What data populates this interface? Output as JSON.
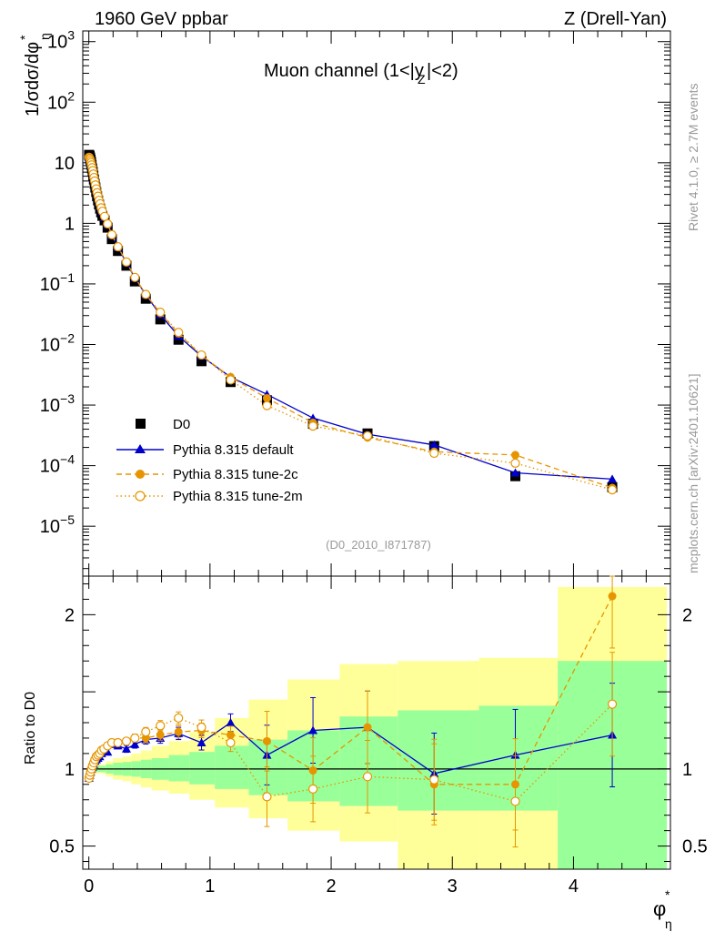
{
  "chart_data": [
    {
      "type": "scatter",
      "panel": "main",
      "header_left": "1960 GeV ppbar",
      "header_right": "Z (Drell-Yan)",
      "title": "Muon channel (1<|y_Z|<2)",
      "ylabel": "1/σdσ/dφ*_η",
      "xlabel": "φ*_η",
      "yscale": "log",
      "ylim": [
        1.5e-06,
        1500
      ],
      "xlim": [
        -0.05,
        4.8
      ],
      "x_ticks": [
        "0",
        "1",
        "2",
        "3",
        "4"
      ],
      "y_ticks": [
        "10^-5",
        "10^-4",
        "10^-3",
        "10^-2",
        "10^-1",
        "1",
        "10",
        "10^2",
        "10^3"
      ],
      "legend_position": "lower-left",
      "watermark": "(D0_2010_I871787)",
      "side_label_top": "Rivet 4.1.0, ≥ 2.7M events",
      "side_label_bottom": "mcplots.cern.ch [arXiv:2401.10621]",
      "x": [
        0.002,
        0.006,
        0.01,
        0.014,
        0.018,
        0.022,
        0.027,
        0.032,
        0.037,
        0.042,
        0.048,
        0.054,
        0.061,
        0.068,
        0.076,
        0.084,
        0.093,
        0.102,
        0.112,
        0.13,
        0.155,
        0.19,
        0.24,
        0.31,
        0.38,
        0.47,
        0.59,
        0.74,
        0.93,
        1.17,
        1.47,
        1.85,
        2.3,
        2.85,
        3.52,
        4.32
      ],
      "series": [
        {
          "name": "D0",
          "color": "#000000",
          "marker": "square",
          "values": [
            13.5,
            13.0,
            12.2,
            11.3,
            10.3,
            9.2,
            8.1,
            7.1,
            6.1,
            5.3,
            4.5,
            3.9,
            3.3,
            2.8,
            2.4,
            2.05,
            1.75,
            1.52,
            1.33,
            1.12,
            0.85,
            0.55,
            0.35,
            0.2,
            0.11,
            0.057,
            0.026,
            0.012,
            0.0053,
            0.0024,
            0.0012,
            0.00049,
            0.00034,
            0.00021,
            6.7e-05,
            4.4e-05
          ]
        },
        {
          "name": "Pythia 8.315 default",
          "color": "#0000cc",
          "marker": "triangle",
          "line": "solid",
          "values": [
            12.3,
            11.9,
            11.4,
            10.7,
            9.9,
            9.0,
            8.1,
            7.2,
            6.3,
            5.5,
            4.8,
            4.2,
            3.6,
            3.1,
            2.7,
            2.35,
            2.0,
            1.75,
            1.52,
            1.25,
            0.95,
            0.63,
            0.4,
            0.225,
            0.125,
            0.066,
            0.031,
            0.0138,
            0.0064,
            0.0029,
            0.0015,
            0.00061,
            0.00033,
            0.00022,
            7.6e-05,
            6e-05
          ]
        },
        {
          "name": "Pythia 8.315 tune-2c",
          "color": "#e69500",
          "marker": "circle",
          "line": "dashed",
          "values": [
            12.3,
            11.9,
            11.4,
            10.7,
            10.0,
            9.2,
            8.3,
            7.4,
            6.5,
            5.7,
            5.0,
            4.3,
            3.7,
            3.2,
            2.8,
            2.4,
            2.1,
            1.8,
            1.58,
            1.3,
            0.98,
            0.65,
            0.41,
            0.23,
            0.128,
            0.067,
            0.033,
            0.0152,
            0.0066,
            0.0029,
            0.0013,
            0.00051,
            0.00029,
            0.00017,
            0.00015,
            4.3e-05
          ]
        },
        {
          "name": "Pythia 8.315 tune-2m",
          "color": "#e69500",
          "marker": "open-circle",
          "line": "dotted",
          "values": [
            12.3,
            11.9,
            11.4,
            10.7,
            10.0,
            9.2,
            8.3,
            7.4,
            6.5,
            5.7,
            5.0,
            4.3,
            3.7,
            3.2,
            2.8,
            2.4,
            2.1,
            1.8,
            1.58,
            1.3,
            0.98,
            0.65,
            0.41,
            0.23,
            0.128,
            0.067,
            0.034,
            0.0158,
            0.0067,
            0.0026,
            0.00098,
            0.00045,
            0.00031,
            0.00016,
            0.00011,
            4e-05
          ]
        }
      ]
    },
    {
      "type": "scatter",
      "panel": "ratio",
      "ylabel": "Ratio to D0",
      "yscale": "linear",
      "ylim": [
        0.35,
        2.25
      ],
      "y_ticks": [
        "0.5",
        "1",
        "2"
      ],
      "bands": {
        "edges": [
          0.0,
          0.06,
          0.14,
          0.2,
          0.28,
          0.35,
          0.43,
          0.52,
          0.66,
          0.83,
          1.04,
          1.32,
          1.64,
          2.07,
          2.55,
          3.22,
          3.87,
          4.77
        ],
        "stat_lo": [
          0.985,
          0.98,
          0.97,
          0.96,
          0.955,
          0.95,
          0.94,
          0.93,
          0.92,
          0.9,
          0.87,
          0.83,
          0.79,
          0.76,
          0.73,
          0.73,
          0.35
        ],
        "stat_hi": [
          1.015,
          1.02,
          1.03,
          1.04,
          1.045,
          1.05,
          1.06,
          1.07,
          1.09,
          1.11,
          1.15,
          1.19,
          1.25,
          1.34,
          1.38,
          1.41,
          1.7
        ],
        "tot_lo": [
          0.975,
          0.97,
          0.95,
          0.93,
          0.92,
          0.9,
          0.88,
          0.86,
          0.84,
          0.8,
          0.75,
          0.68,
          0.6,
          0.53,
          0.35,
          0.35,
          0.35
        ],
        "tot_hi": [
          1.025,
          1.03,
          1.05,
          1.07,
          1.08,
          1.1,
          1.12,
          1.15,
          1.18,
          1.24,
          1.33,
          1.45,
          1.58,
          1.68,
          1.7,
          1.72,
          2.18
        ]
      },
      "x_ratio": [
        0.002,
        0.008,
        0.015,
        0.022,
        0.03,
        0.04,
        0.05,
        0.062,
        0.075,
        0.09,
        0.105,
        0.125,
        0.155,
        0.19,
        0.24,
        0.31,
        0.38,
        0.47,
        0.59,
        0.74,
        0.93,
        1.17,
        1.47,
        1.85,
        2.3,
        2.85,
        3.52,
        4.32
      ],
      "series": [
        {
          "name": "Pythia 8.315 default",
          "values": [
            0.94,
            0.96,
            0.98,
            1.0,
            1.01,
            1.03,
            1.05,
            1.06,
            1.07,
            1.08,
            1.1,
            1.12,
            1.11,
            1.16,
            1.15,
            1.13,
            1.16,
            1.19,
            1.2,
            1.23,
            1.17,
            1.3,
            1.09,
            1.25,
            1.27,
            0.97,
            1.09,
            1.22
          ]
        },
        {
          "name": "Pythia 8.315 tune-2c",
          "values": [
            0.94,
            0.96,
            0.98,
            1.0,
            1.02,
            1.04,
            1.06,
            1.08,
            1.09,
            1.1,
            1.12,
            1.13,
            1.15,
            1.17,
            1.17,
            1.18,
            1.2,
            1.2,
            1.22,
            1.24,
            1.25,
            1.22,
            1.18,
            0.99,
            1.27,
            0.9,
            0.9,
            2.12
          ]
        },
        {
          "name": "Pythia 8.315 tune-2m",
          "values": [
            0.94,
            0.96,
            0.98,
            1.0,
            1.02,
            1.04,
            1.06,
            1.08,
            1.09,
            1.1,
            1.12,
            1.13,
            1.15,
            1.17,
            1.17,
            1.18,
            1.2,
            1.24,
            1.28,
            1.33,
            1.27,
            1.17,
            0.82,
            0.87,
            0.95,
            0.93,
            0.79,
            1.42
          ]
        }
      ]
    }
  ]
}
